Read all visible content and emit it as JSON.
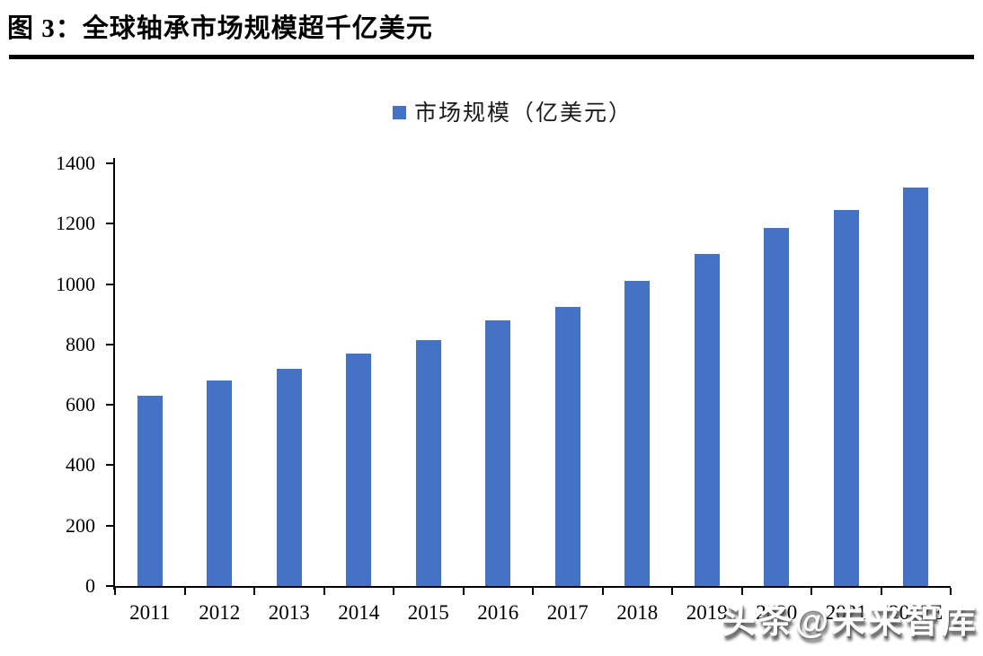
{
  "header": {
    "figure_label": "图 3：全球轴承市场规模超千亿美元"
  },
  "legend": {
    "label": "市场规模（亿美元）",
    "marker_color": "#4472C4"
  },
  "chart_data": {
    "type": "bar",
    "title": "图 3：全球轴承市场规模超千亿美元",
    "series_name": "市场规模（亿美元）",
    "categories": [
      "2011",
      "2012",
      "2013",
      "2014",
      "2015",
      "2016",
      "2017",
      "2018",
      "2019",
      "2020",
      "2021",
      "2022E"
    ],
    "values": [
      630,
      680,
      720,
      770,
      815,
      880,
      925,
      1010,
      1100,
      1185,
      1245,
      1320
    ],
    "bar_color": "#4472C4",
    "xlabel": "",
    "ylabel": "",
    "ylim": [
      0,
      1400
    ],
    "yticks": [
      0,
      200,
      400,
      600,
      800,
      1000,
      1200,
      1400
    ],
    "grid": false,
    "legend_position": "top-center"
  },
  "watermark": {
    "text": "头条@未来智库"
  },
  "colors": {
    "bar": "#4472C4",
    "axis": "#000000",
    "text": "#000000",
    "background": "#ffffff"
  }
}
